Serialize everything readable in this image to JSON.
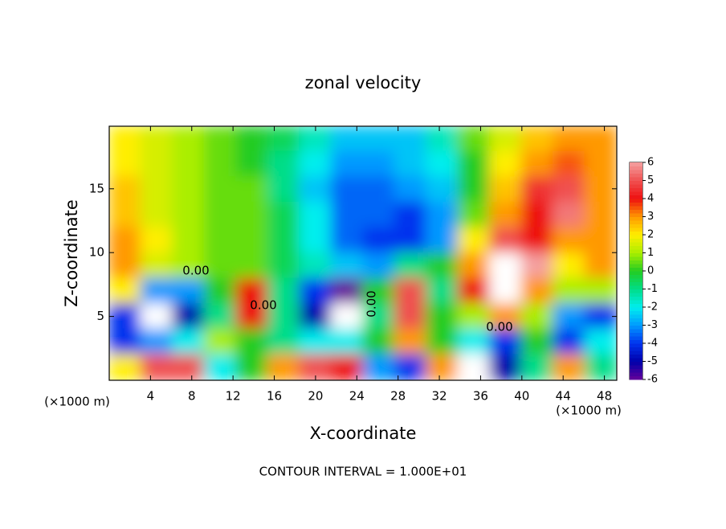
{
  "chart_data": {
    "type": "heatmap",
    "title": "zonal velocity",
    "x_label": "X-coordinate",
    "y_label": "Z-coordinate",
    "x_unit": "(×1000 m)",
    "footer": "CONTOUR INTERVAL = 1.000E+01",
    "contour_label": "0.00",
    "xlim": [
      0,
      49.2
    ],
    "ylim": [
      0,
      19.9
    ],
    "xticks": [
      4,
      8,
      12,
      16,
      20,
      24,
      28,
      32,
      36,
      40,
      44,
      48
    ],
    "yticks": [
      5,
      10,
      15
    ],
    "clim": [
      -6,
      6
    ],
    "cticks": [
      -6,
      -5,
      -4,
      -3,
      -2,
      -1,
      0,
      1,
      2,
      3,
      4,
      5,
      6
    ],
    "colors": [
      "#660099",
      "#0000aa",
      "#0033ee",
      "#0099ff",
      "#00eeee",
      "#00dd88",
      "#22cc22",
      "#aaee00",
      "#ffee00",
      "#ff9900",
      "#ee1010",
      "#f05050",
      "#f4a0a0"
    ],
    "out_of_range_color": "#ffffff",
    "z": [
      [
        2,
        1.5,
        1,
        0.5,
        0,
        -0.5,
        -1.5,
        -2.5,
        -2.5,
        -2.5,
        -1.5,
        0.5,
        1.5,
        2.5,
        3,
        3
      ],
      [
        2,
        1.5,
        1,
        0.5,
        0,
        -1,
        -2,
        -3,
        -3,
        -2.5,
        -2,
        0,
        2,
        3,
        3.5,
        3
      ],
      [
        2.5,
        1.5,
        1,
        0.5,
        0.5,
        -1,
        -2.5,
        -3.5,
        -3.5,
        -3,
        -2.5,
        0,
        2.5,
        4.5,
        5,
        3
      ],
      [
        2.5,
        1.5,
        1,
        0.5,
        0.5,
        -0.5,
        -2,
        -3.5,
        -3.5,
        -4,
        -3,
        0.5,
        3,
        4,
        5.5,
        3
      ],
      [
        3,
        2,
        1,
        0.5,
        0.5,
        -0.5,
        -2,
        -3.5,
        -4,
        -4,
        -3,
        2,
        5,
        4,
        3,
        3
      ],
      [
        3,
        1.5,
        1,
        0.5,
        0.5,
        -0.5,
        -1.5,
        -2.5,
        -3,
        -1,
        0,
        3,
        8,
        6,
        2,
        3
      ],
      [
        2,
        -3,
        -3,
        0,
        4,
        -1,
        -4,
        -6,
        0,
        5,
        -1,
        4,
        8,
        3,
        1,
        1
      ],
      [
        -4,
        -8,
        -5,
        -1,
        4,
        -1,
        -5,
        -8,
        -1,
        5,
        0,
        1,
        3,
        1,
        -3,
        -4
      ],
      [
        -4,
        -3,
        -2,
        1,
        0,
        -1,
        -2,
        -2,
        0,
        3,
        0,
        -2,
        -4,
        0,
        -4,
        -2
      ],
      [
        2,
        5,
        5,
        -2,
        0,
        3,
        5,
        4,
        -3,
        -4,
        3,
        -8,
        -5,
        -1,
        3,
        -1
      ]
    ]
  }
}
